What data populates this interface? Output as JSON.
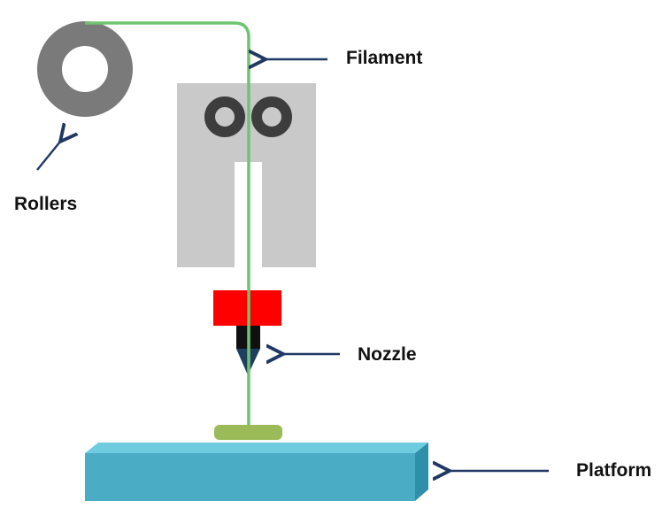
{
  "labels": {
    "filament": "Filament",
    "rollers": "Rollers",
    "nozzle": "Nozzle",
    "platform": "Platform"
  },
  "colors": {
    "filament": "#6fc46f",
    "spool": "#7a7a7a",
    "extruder_body": "#c9c9c9",
    "drive_rollers": "#3d3d3d",
    "feed_channel": "#ffffff",
    "heater_block": "#ff0000",
    "nozzle_tip": "#101010",
    "nozzle_cone": "#1e3f5e",
    "printed_part": "#9bbb59",
    "platform_top": "#6fcbe0",
    "platform_front": "#4bacc6",
    "platform_side": "#2f8fa8",
    "arrow": "#1f3864"
  },
  "icons": {
    "spool": "spool-icon",
    "drive_rollers": "drive-rollers-icon",
    "nozzle": "nozzle-icon",
    "platform": "platform-icon",
    "arrow": "arrow-left-icon"
  }
}
